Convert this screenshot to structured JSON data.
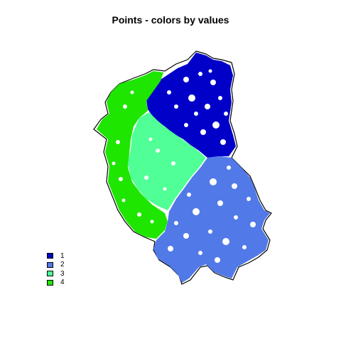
{
  "title": "Points - colors by values",
  "legend": [
    {
      "label": "1",
      "color": "#0000c8"
    },
    {
      "label": "2",
      "color": "#5179e8"
    },
    {
      "label": "3",
      "color": "#50ff96"
    },
    {
      "label": "4",
      "color": "#1ee600"
    }
  ],
  "chart_data": {
    "type": "scatter",
    "title": "Points - colors by values",
    "xlabel": "",
    "ylabel": "",
    "series": [
      {
        "name": "1",
        "color": "#0000c8"
      },
      {
        "name": "2",
        "color": "#5179e8"
      },
      {
        "name": "3",
        "color": "#50ff96"
      },
      {
        "name": "4",
        "color": "#1ee600"
      }
    ],
    "legend_position": "bottom-left",
    "grid": false
  }
}
